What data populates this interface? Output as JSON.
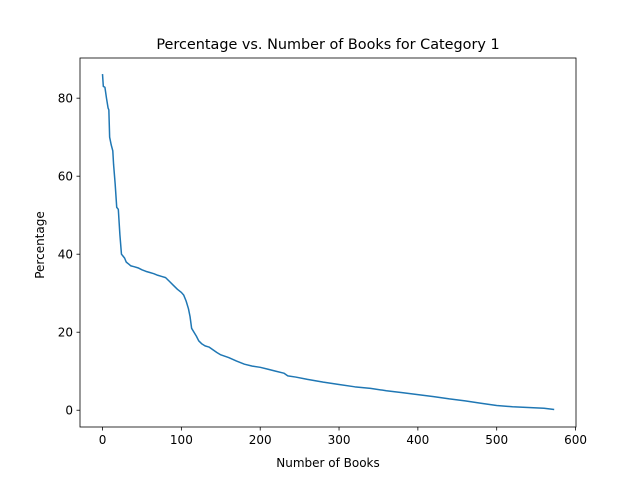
{
  "chart_data": {
    "type": "line",
    "title": "Percentage vs. Number of Books for Category 1",
    "xlabel": "Number of Books",
    "ylabel": "Percentage",
    "xlim": [
      -28.6,
      600.6
    ],
    "ylim": [
      -4.3,
      90.3
    ],
    "xticks": [
      0,
      100,
      200,
      300,
      400,
      500,
      600
    ],
    "yticks": [
      0,
      20,
      40,
      60,
      80
    ],
    "grid": false,
    "legend": "none",
    "series": [
      {
        "color": "#1f77b4",
        "points": [
          [
            0,
            86.0
          ],
          [
            1,
            83.0
          ],
          [
            3,
            82.8
          ],
          [
            5,
            80.0
          ],
          [
            7,
            77.5
          ],
          [
            8,
            77.0
          ],
          [
            9,
            70.0
          ],
          [
            11,
            68.0
          ],
          [
            13,
            66.5
          ],
          [
            14,
            63.0
          ],
          [
            16,
            58.0
          ],
          [
            18,
            52.0
          ],
          [
            20,
            51.5
          ],
          [
            22,
            45.0
          ],
          [
            24,
            40.0
          ],
          [
            26,
            39.5
          ],
          [
            28,
            39.0
          ],
          [
            30,
            38.0
          ],
          [
            33,
            37.5
          ],
          [
            36,
            37.0
          ],
          [
            40,
            36.8
          ],
          [
            45,
            36.5
          ],
          [
            50,
            36.0
          ],
          [
            55,
            35.6
          ],
          [
            60,
            35.3
          ],
          [
            65,
            35.0
          ],
          [
            70,
            34.6
          ],
          [
            75,
            34.3
          ],
          [
            80,
            34.0
          ],
          [
            85,
            33.0
          ],
          [
            90,
            32.0
          ],
          [
            95,
            31.0
          ],
          [
            100,
            30.2
          ],
          [
            103,
            29.5
          ],
          [
            106,
            28.0
          ],
          [
            109,
            26.0
          ],
          [
            111,
            24.0
          ],
          [
            113,
            21.0
          ],
          [
            116,
            20.0
          ],
          [
            119,
            19.0
          ],
          [
            122,
            17.8
          ],
          [
            126,
            17.0
          ],
          [
            130,
            16.5
          ],
          [
            135,
            16.2
          ],
          [
            140,
            15.5
          ],
          [
            145,
            14.8
          ],
          [
            150,
            14.2
          ],
          [
            160,
            13.5
          ],
          [
            170,
            12.6
          ],
          [
            180,
            11.8
          ],
          [
            190,
            11.3
          ],
          [
            200,
            11.0
          ],
          [
            210,
            10.5
          ],
          [
            220,
            10.0
          ],
          [
            230,
            9.5
          ],
          [
            235,
            8.8
          ],
          [
            245,
            8.5
          ],
          [
            260,
            7.9
          ],
          [
            280,
            7.2
          ],
          [
            300,
            6.6
          ],
          [
            320,
            6.0
          ],
          [
            340,
            5.6
          ],
          [
            360,
            5.0
          ],
          [
            380,
            4.5
          ],
          [
            400,
            4.0
          ],
          [
            420,
            3.5
          ],
          [
            440,
            2.9
          ],
          [
            460,
            2.4
          ],
          [
            480,
            1.8
          ],
          [
            500,
            1.2
          ],
          [
            520,
            0.9
          ],
          [
            540,
            0.7
          ],
          [
            560,
            0.5
          ],
          [
            572,
            0.2
          ]
        ]
      }
    ]
  }
}
